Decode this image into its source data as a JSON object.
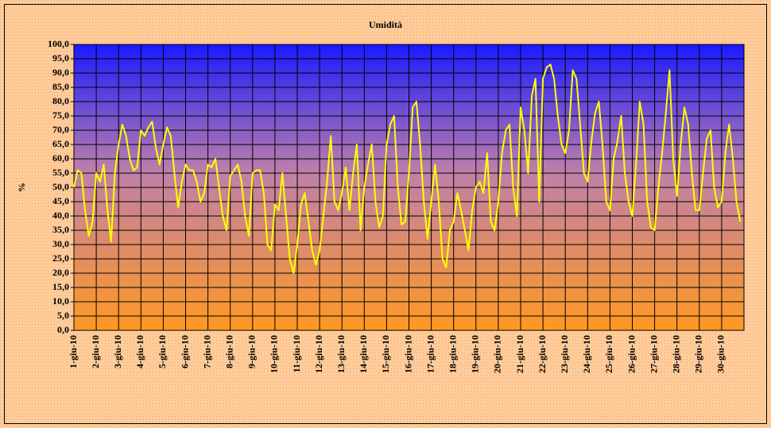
{
  "chart_data": {
    "type": "line",
    "title": "Umidità",
    "y_label": "%",
    "color": "#ffff00",
    "grid": true,
    "ylim": [
      0,
      100
    ],
    "yticks": [
      {
        "value": 0,
        "label": "0,0"
      },
      {
        "value": 5,
        "label": "5,0"
      },
      {
        "value": 10,
        "label": "10,0"
      },
      {
        "value": 15,
        "label": "15,0"
      },
      {
        "value": 20,
        "label": "20,0"
      },
      {
        "value": 25,
        "label": "25,0"
      },
      {
        "value": 30,
        "label": "30,0"
      },
      {
        "value": 35,
        "label": "35,0"
      },
      {
        "value": 40,
        "label": "40,0"
      },
      {
        "value": 45,
        "label": "45,0"
      },
      {
        "value": 50,
        "label": "50,0"
      },
      {
        "value": 55,
        "label": "55,0"
      },
      {
        "value": 60,
        "label": "60,0"
      },
      {
        "value": 65,
        "label": "65,0"
      },
      {
        "value": 70,
        "label": "70,0"
      },
      {
        "value": 75,
        "label": "75,0"
      },
      {
        "value": 80,
        "label": "80,0"
      },
      {
        "value": 85,
        "label": "85,0"
      },
      {
        "value": 90,
        "label": "90,0"
      },
      {
        "value": 95,
        "label": "95,0"
      },
      {
        "value": 100,
        "label": "100,0"
      }
    ],
    "categories": [
      "1-giu-10",
      null,
      null,
      null,
      null,
      null,
      "2-giu-10",
      null,
      null,
      null,
      null,
      null,
      "3-giu-10",
      null,
      null,
      null,
      null,
      null,
      "4-giu-10",
      null,
      null,
      null,
      null,
      null,
      "5-giu-10",
      null,
      null,
      null,
      null,
      null,
      "6-giu-10",
      null,
      null,
      null,
      null,
      null,
      "7-giu-10",
      null,
      null,
      null,
      null,
      null,
      "8-giu-10",
      null,
      null,
      null,
      null,
      null,
      "9-giu-10",
      null,
      null,
      null,
      null,
      null,
      "10-giu-10",
      null,
      null,
      null,
      null,
      null,
      "11-giu-10",
      null,
      null,
      null,
      null,
      null,
      "12-giu-10",
      null,
      null,
      null,
      null,
      null,
      "13-giu-10",
      null,
      null,
      null,
      null,
      null,
      "14-giu-10",
      null,
      null,
      null,
      null,
      null,
      "15-giu-10",
      null,
      null,
      null,
      null,
      null,
      "16-giu-10",
      null,
      null,
      null,
      null,
      null,
      "17-giu-10",
      null,
      null,
      null,
      null,
      null,
      "18-giu-10",
      null,
      null,
      null,
      null,
      null,
      "19-giu-10",
      null,
      null,
      null,
      null,
      null,
      "20-giu-10",
      null,
      null,
      null,
      null,
      null,
      "21-giu-10",
      null,
      null,
      null,
      null,
      null,
      "22-giu-10",
      null,
      null,
      null,
      null,
      null,
      "23-giu-10",
      null,
      null,
      null,
      null,
      null,
      "24-giu-10",
      null,
      null,
      null,
      null,
      null,
      "25-giu-10",
      null,
      null,
      null,
      null,
      null,
      "26-giu-10",
      null,
      null,
      null,
      null,
      null,
      "27-giu-10",
      null,
      null,
      null,
      null,
      null,
      "28-giu-10",
      null,
      null,
      null,
      null,
      null,
      "29-giu-10",
      null,
      null,
      null,
      null,
      null,
      "30-giu-10",
      null,
      null,
      null,
      null,
      null
    ],
    "values": [
      50,
      56,
      55,
      42,
      33,
      38,
      55,
      52,
      58,
      42,
      31,
      55,
      65,
      72,
      68,
      60,
      56,
      57,
      70,
      68,
      71,
      73,
      64,
      58,
      65,
      71,
      68,
      55,
      43,
      52,
      58,
      56,
      56,
      52,
      45,
      48,
      58,
      57,
      60,
      50,
      40,
      35,
      54,
      56,
      58,
      52,
      40,
      33,
      55,
      56,
      56,
      48,
      30,
      28,
      44,
      42,
      55,
      40,
      25,
      20,
      30,
      44,
      48,
      38,
      28,
      23,
      28,
      40,
      52,
      68,
      45,
      42,
      48,
      57,
      42,
      55,
      65,
      35,
      50,
      58,
      65,
      45,
      36,
      40,
      65,
      72,
      75,
      50,
      37,
      38,
      55,
      78,
      80,
      65,
      45,
      32,
      45,
      58,
      45,
      25,
      22,
      35,
      38,
      48,
      42,
      35,
      28,
      42,
      50,
      52,
      48,
      62,
      38,
      35,
      45,
      62,
      70,
      72,
      50,
      40,
      78,
      70,
      55,
      82,
      88,
      45,
      88,
      92,
      93,
      88,
      75,
      65,
      62,
      70,
      91,
      88,
      72,
      55,
      52,
      66,
      76,
      80,
      65,
      45,
      42,
      60,
      66,
      75,
      55,
      45,
      40,
      58,
      80,
      72,
      45,
      36,
      35,
      50,
      62,
      76,
      91,
      60,
      47,
      65,
      78,
      72,
      55,
      42,
      42,
      55,
      67,
      70,
      50,
      43,
      45,
      62,
      72,
      60,
      45,
      38
    ]
  }
}
